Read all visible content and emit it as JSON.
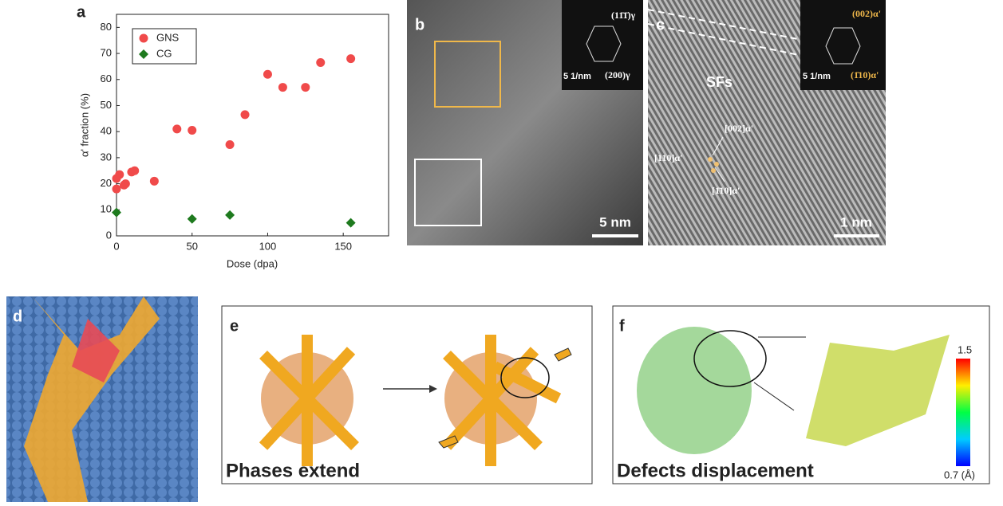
{
  "chart_data": {
    "type": "scatter",
    "panel_label": "a",
    "x_label": "Dose (dpa)",
    "y_label": "α' fraction (%)",
    "xlim": [
      0,
      180
    ],
    "xticks": [
      0,
      50,
      100,
      150
    ],
    "ylim": [
      0,
      85
    ],
    "yticks": [
      0,
      10,
      20,
      30,
      40,
      50,
      60,
      70,
      80
    ],
    "legend": "upper left",
    "series": [
      {
        "name": "GNS",
        "color": "#f04a4a",
        "marker": "circle",
        "x": [
          0,
          0,
          2,
          5,
          6,
          10,
          12,
          25,
          40,
          50,
          75,
          85,
          100,
          110,
          125,
          135,
          155
        ],
        "values": [
          18,
          22,
          23.5,
          19.5,
          20,
          24.5,
          25,
          21,
          41,
          40.5,
          35,
          46.5,
          62,
          57,
          57,
          66.5,
          68
        ]
      },
      {
        "name": "CG",
        "color": "#1e7a1e",
        "marker": "diamond",
        "x": [
          0,
          50,
          75,
          155
        ],
        "values": [
          9,
          6.5,
          8,
          5
        ]
      }
    ]
  },
  "panels": {
    "b": {
      "label": "b",
      "fft_spot_1": "(11̄1̄)γ",
      "fft_spot_2": "(200)γ",
      "fft_scale": "5 1/nm",
      "scale": "5 nm"
    },
    "c": {
      "label": "c",
      "fft_spot_1": "(002)α'",
      "fft_spot_2": "(1̄10)α'",
      "fft_scale": "5 1/nm",
      "feature": "SFs",
      "dir_1": "[002]α'",
      "dir_2": "[110]α'",
      "dir_3": "[1̄10]α'",
      "scale": "1 nm"
    },
    "d": {
      "label": "d"
    },
    "e": {
      "label": "e",
      "caption": "Phases extend"
    },
    "f": {
      "label": "f",
      "caption": "Defects displacement",
      "colorbar_max": "1.5",
      "colorbar_min": "0.7 (Å)"
    }
  }
}
